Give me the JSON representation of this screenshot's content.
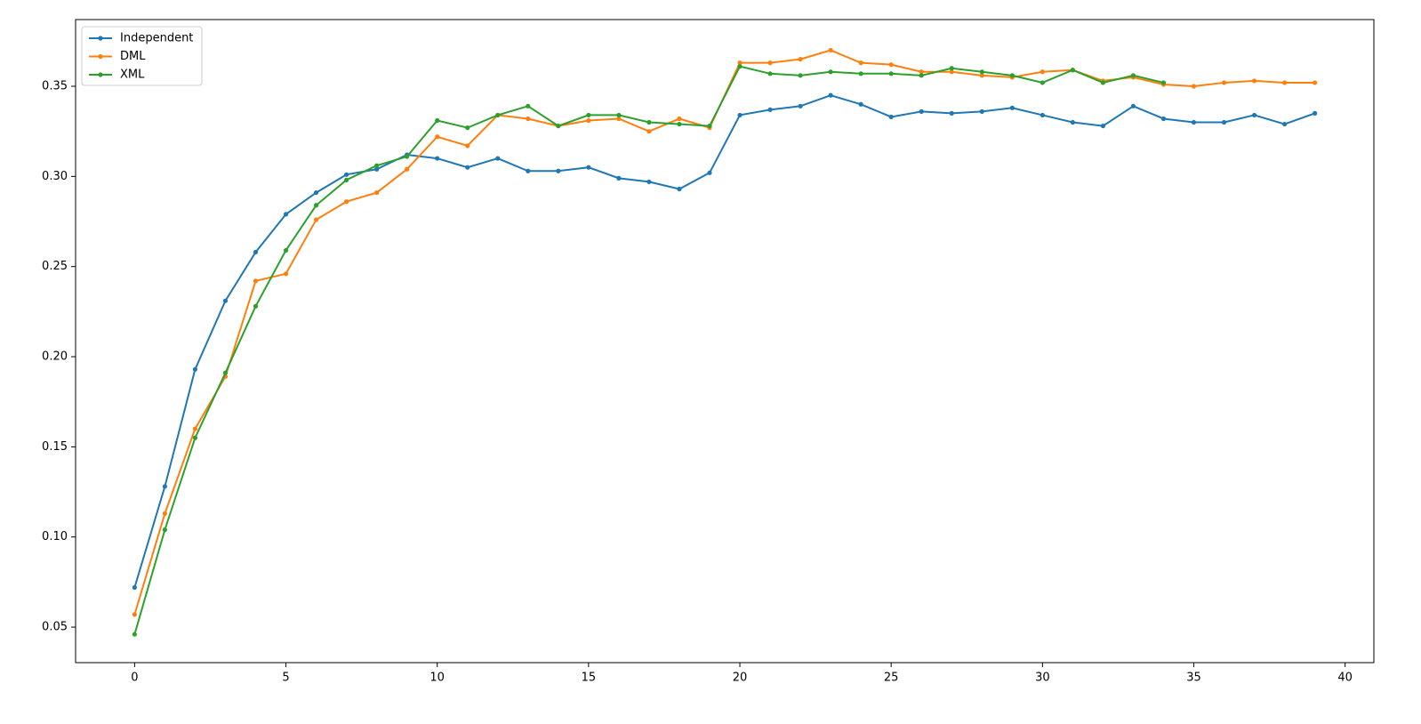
{
  "chart_data": {
    "type": "line",
    "x": [
      0,
      1,
      2,
      3,
      4,
      5,
      6,
      7,
      8,
      9,
      10,
      11,
      12,
      13,
      14,
      15,
      16,
      17,
      18,
      19,
      20,
      21,
      22,
      23,
      24,
      25,
      26,
      27,
      28,
      29,
      30,
      31,
      32,
      33,
      34,
      35,
      36,
      37,
      38,
      39
    ],
    "series": [
      {
        "name": "Independent",
        "color": "#1f77b4",
        "values": [
          0.072,
          0.128,
          0.193,
          0.231,
          0.258,
          0.279,
          0.291,
          0.301,
          0.304,
          0.312,
          0.31,
          0.305,
          0.31,
          0.303,
          0.303,
          0.305,
          0.299,
          0.297,
          0.293,
          0.302,
          0.334,
          0.337,
          0.339,
          0.345,
          0.34,
          0.333,
          0.336,
          0.335,
          0.336,
          0.338,
          0.334,
          0.33,
          0.328,
          0.339,
          0.332,
          0.33,
          0.33,
          0.334,
          0.329,
          0.335
        ]
      },
      {
        "name": "DML",
        "color": "#ff7f0e",
        "values": [
          0.057,
          0.113,
          0.16,
          0.189,
          0.242,
          0.246,
          0.276,
          0.286,
          0.291,
          0.304,
          0.322,
          0.317,
          0.334,
          0.332,
          0.328,
          0.331,
          0.332,
          0.325,
          0.332,
          0.327,
          0.363,
          0.363,
          0.365,
          0.37,
          0.363,
          0.362,
          0.358,
          0.358,
          0.356,
          0.355,
          0.358,
          0.359,
          0.353,
          0.355,
          0.351,
          0.35,
          0.352,
          0.353,
          0.352,
          0.352
        ]
      },
      {
        "name": "XML",
        "color": "#2ca02c",
        "values": [
          0.046,
          0.104,
          0.155,
          0.191,
          0.228,
          0.259,
          0.284,
          0.298,
          0.306,
          0.311,
          0.331,
          0.327,
          0.334,
          0.339,
          0.328,
          0.334,
          0.334,
          0.33,
          0.329,
          0.328,
          0.361,
          0.357,
          0.356,
          0.358,
          0.357,
          0.357,
          0.356,
          0.36,
          0.358,
          0.356,
          0.352,
          0.359,
          0.352,
          0.356,
          0.352,
          null,
          null,
          null,
          null,
          null
        ]
      }
    ],
    "xlim": [
      -1.95,
      40.95
    ],
    "ylim": [
      0.0303,
      0.387
    ],
    "xticks": [
      0,
      5,
      10,
      15,
      20,
      25,
      30,
      35,
      40
    ],
    "yticks": [
      0.05,
      {
        "value": 0.1,
        "label": "0.10"
      },
      0.15,
      {
        "value": 0.2,
        "label": "0.20"
      },
      0.25,
      {
        "value": 0.3,
        "label": "0.30"
      },
      0.35
    ],
    "legend": "upper left",
    "grid": false
  }
}
